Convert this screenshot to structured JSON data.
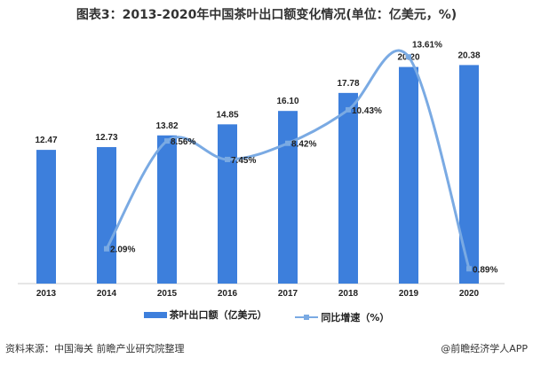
{
  "chart_data": {
    "type": "bar+line",
    "title": "图表3：2013-2020年中国茶叶出口额变化情况(单位：亿美元，%)",
    "categories": [
      "2013",
      "2014",
      "2015",
      "2016",
      "2017",
      "2018",
      "2019",
      "2020"
    ],
    "series": [
      {
        "name": "茶叶出口额（亿美元）",
        "type": "bar",
        "color": "#3d7fdc",
        "values": [
          12.47,
          12.73,
          13.82,
          14.85,
          16.1,
          17.78,
          20.2,
          20.38
        ],
        "labels": [
          "12.47",
          "12.73",
          "13.82",
          "14.85",
          "16.10",
          "17.78",
          "20.20",
          "20.38"
        ]
      },
      {
        "name": "同比增速（%）",
        "type": "line",
        "smooth": true,
        "color": "#7aaae3",
        "values": [
          null,
          2.09,
          8.56,
          7.45,
          8.42,
          10.43,
          13.61,
          0.89
        ],
        "labels": [
          "",
          "2.09%",
          "8.56%",
          "7.45%",
          "8.42%",
          "10.43%",
          "13.61%",
          "0.89%"
        ]
      }
    ],
    "grid": false,
    "legend": "bottom"
  },
  "footer": {
    "source": "资料来源：中国海关 前瞻产业研究院整理",
    "credit": "@前瞻经济学人APP"
  }
}
